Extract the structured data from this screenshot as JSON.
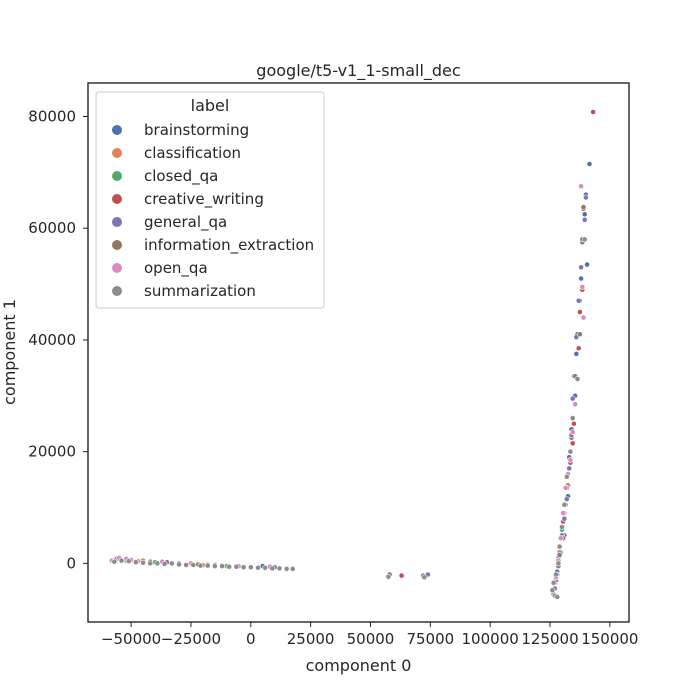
{
  "chart_data": {
    "type": "scatter",
    "title": "google/t5-v1_1-small_dec",
    "xlabel": "component 0",
    "ylabel": "component 1",
    "xlim": [
      -68000,
      158000
    ],
    "ylim": [
      -10500,
      86000
    ],
    "xticks": [
      -50000,
      -25000,
      0,
      25000,
      50000,
      75000,
      100000,
      125000,
      150000
    ],
    "xtick_labels": [
      "−50000",
      "−25000",
      "0",
      "25000",
      "50000",
      "75000",
      "100000",
      "125000",
      "150000"
    ],
    "yticks": [
      0,
      20000,
      40000,
      60000,
      80000
    ],
    "ytick_labels": [
      "0",
      "20000",
      "40000",
      "60000",
      "80000"
    ],
    "grid": false,
    "legend": {
      "title": "label",
      "placement": "top-left",
      "entries": [
        {
          "name": "brainstorming",
          "color": "#4c72b0"
        },
        {
          "name": "classification",
          "color": "#dd8452"
        },
        {
          "name": "closed_qa",
          "color": "#55a868"
        },
        {
          "name": "creative_writing",
          "color": "#c44e52"
        },
        {
          "name": "general_qa",
          "color": "#8172b3"
        },
        {
          "name": "information_extraction",
          "color": "#937860"
        },
        {
          "name": "open_qa",
          "color": "#da8bc3"
        },
        {
          "name": "summarization",
          "color": "#8c8c8c"
        }
      ]
    },
    "series": [
      {
        "name": "brainstorming",
        "points": [
          [
            141500,
            71500
          ],
          [
            140000,
            66000
          ],
          [
            139500,
            62500
          ],
          [
            140500,
            53500
          ],
          [
            138000,
            51000
          ],
          [
            137500,
            47000
          ],
          [
            136500,
            41000
          ],
          [
            136000,
            37500
          ],
          [
            135500,
            30000
          ],
          [
            134000,
            24000
          ],
          [
            133000,
            19000
          ],
          [
            132500,
            12000
          ],
          [
            131000,
            5000
          ],
          [
            129500,
            2000
          ],
          [
            128000,
            -1500
          ],
          [
            -52000,
            500
          ],
          [
            -30000,
            0
          ],
          [
            5000,
            -500
          ]
        ]
      },
      {
        "name": "classification",
        "points": [
          [
            132500,
            14000
          ],
          [
            131000,
            9000
          ],
          [
            129000,
            2000
          ],
          [
            127500,
            -2500
          ],
          [
            -45000,
            500
          ],
          [
            -20000,
            -300
          ]
        ]
      },
      {
        "name": "closed_qa",
        "points": [
          [
            130000,
            6000
          ],
          [
            128500,
            1000
          ],
          [
            127000,
            -3500
          ],
          [
            -40000,
            200
          ],
          [
            -10000,
            -500
          ]
        ]
      },
      {
        "name": "creative_writing",
        "points": [
          [
            143000,
            80800
          ],
          [
            139000,
            63500
          ],
          [
            138500,
            49000
          ],
          [
            137500,
            45000
          ],
          [
            137000,
            38500
          ],
          [
            135000,
            25000
          ],
          [
            134500,
            21500
          ],
          [
            133500,
            18000
          ],
          [
            132000,
            13500
          ],
          [
            130500,
            7500
          ],
          [
            129000,
            3000
          ],
          [
            63000,
            -2200
          ],
          [
            -48000,
            300
          ]
        ]
      },
      {
        "name": "general_qa",
        "points": [
          [
            140000,
            65500
          ],
          [
            139500,
            61500
          ],
          [
            138500,
            57500
          ],
          [
            138000,
            53000
          ],
          [
            137000,
            47000
          ],
          [
            136000,
            40500
          ],
          [
            135000,
            33500
          ],
          [
            134500,
            29500
          ],
          [
            134000,
            22500
          ],
          [
            133000,
            17000
          ],
          [
            132000,
            11500
          ],
          [
            131000,
            8000
          ],
          [
            130000,
            5000
          ],
          [
            129000,
            1500
          ],
          [
            128000,
            -2000
          ],
          [
            127000,
            -4500
          ],
          [
            126500,
            -5500
          ],
          [
            72000,
            -2200
          ],
          [
            74000,
            -2000
          ],
          [
            -56000,
            800
          ],
          [
            -35000,
            200
          ],
          [
            -15000,
            -300
          ],
          [
            10000,
            -700
          ]
        ]
      },
      {
        "name": "information_extraction",
        "points": [
          [
            139000,
            63800
          ],
          [
            138500,
            58000
          ],
          [
            137500,
            41000
          ],
          [
            135500,
            33500
          ],
          [
            134000,
            23000
          ],
          [
            131500,
            10500
          ],
          [
            130500,
            4500
          ],
          [
            128500,
            -500
          ],
          [
            127500,
            -3000
          ],
          [
            58000,
            -2000
          ],
          [
            -42000,
            300
          ],
          [
            -22000,
            -200
          ]
        ]
      },
      {
        "name": "open_qa",
        "points": [
          [
            138000,
            67500
          ],
          [
            138500,
            49500
          ],
          [
            139000,
            44000
          ],
          [
            135500,
            28500
          ],
          [
            134500,
            23500
          ],
          [
            133500,
            18500
          ],
          [
            132500,
            16000
          ],
          [
            131500,
            13500
          ],
          [
            130500,
            9000
          ],
          [
            129500,
            4500
          ],
          [
            128500,
            500
          ],
          [
            127500,
            -2500
          ],
          [
            -58000,
            500
          ],
          [
            -55000,
            1000
          ],
          [
            -52000,
            800
          ],
          [
            -50000,
            600
          ],
          [
            -47000,
            400
          ],
          [
            -37000,
            300
          ],
          [
            -25000,
            0
          ],
          [
            -18000,
            -200
          ],
          [
            -12000,
            -400
          ],
          [
            -5000,
            -500
          ],
          [
            8000,
            -600
          ],
          [
            15000,
            -900
          ]
        ]
      },
      {
        "name": "summarization",
        "points": [
          [
            139500,
            58000
          ],
          [
            136500,
            33000
          ],
          [
            134500,
            26000
          ],
          [
            133500,
            20000
          ],
          [
            132000,
            15500
          ],
          [
            131000,
            10500
          ],
          [
            130000,
            6500
          ],
          [
            129000,
            3000
          ],
          [
            128500,
            0
          ],
          [
            127500,
            -2000
          ],
          [
            126500,
            -3500
          ],
          [
            126000,
            -4800
          ],
          [
            127000,
            -5800
          ],
          [
            128000,
            -6000
          ],
          [
            57500,
            -2400
          ],
          [
            72500,
            -2500
          ],
          [
            -57000,
            300
          ],
          [
            -54000,
            500
          ],
          [
            -51000,
            400
          ],
          [
            -48000,
            200
          ],
          [
            -45000,
            100
          ],
          [
            -42000,
            0
          ],
          [
            -39000,
            0
          ],
          [
            -36000,
            -100
          ],
          [
            -33000,
            0
          ],
          [
            -30000,
            -200
          ],
          [
            -27000,
            -300
          ],
          [
            -24000,
            -300
          ],
          [
            -21000,
            -400
          ],
          [
            -18000,
            -400
          ],
          [
            -15000,
            -500
          ],
          [
            -12000,
            -500
          ],
          [
            -9000,
            -600
          ],
          [
            -6000,
            -600
          ],
          [
            -3000,
            -700
          ],
          [
            0,
            -700
          ],
          [
            3000,
            -800
          ],
          [
            6000,
            -800
          ],
          [
            9000,
            -900
          ],
          [
            12000,
            -900
          ],
          [
            15000,
            -1000
          ],
          [
            17500,
            -1000
          ]
        ]
      }
    ]
  }
}
